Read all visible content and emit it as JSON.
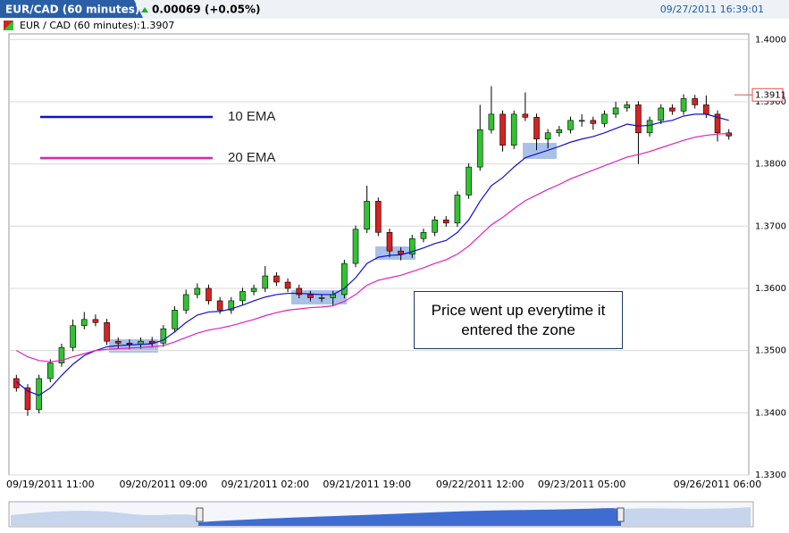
{
  "chart_data": {
    "type": "candlestick",
    "title": "EUR/CAD (60 minutes)",
    "change": "0.00069 (+0.05%)",
    "timestamp": "09/27/2011 16:39:01",
    "subtitle": "EUR / CAD (60 minutes):1.3907",
    "annotation": "Price went up everytime it entered the zone",
    "categories": [
      null,
      null,
      null,
      "09/19/2011 11:00",
      null,
      null,
      null,
      null,
      null,
      null,
      null,
      null,
      null,
      "09/20/2011 09:00",
      null,
      null,
      null,
      null,
      null,
      null,
      null,
      null,
      "09/21/2011 02:00",
      null,
      null,
      null,
      null,
      null,
      null,
      null,
      null,
      "09/21/2011 19:00",
      null,
      null,
      null,
      null,
      null,
      null,
      null,
      null,
      null,
      "09/22/2011 12:00",
      null,
      null,
      null,
      null,
      null,
      null,
      null,
      null,
      "09/23/2011 05:00",
      null,
      null,
      null,
      null,
      null,
      null,
      null,
      null,
      null,
      null,
      null,
      "09/26/2011 06:00",
      null
    ],
    "open": [
      1.3455,
      1.344,
      1.3405,
      1.3455,
      1.348,
      1.3505,
      1.354,
      1.355,
      1.3545,
      1.3515,
      1.3512,
      1.351,
      1.3515,
      1.3512,
      1.3535,
      1.3565,
      1.359,
      1.36,
      1.358,
      1.3565,
      1.358,
      1.3595,
      1.36,
      1.362,
      1.361,
      1.36,
      1.359,
      1.3585,
      1.3585,
      1.359,
      1.364,
      1.3695,
      1.374,
      1.369,
      1.366,
      1.3655,
      1.368,
      1.369,
      1.371,
      1.3705,
      1.375,
      1.3795,
      1.3855,
      1.388,
      1.383,
      1.388,
      1.3875,
      1.384,
      1.385,
      1.3855,
      1.387,
      1.387,
      1.3865,
      1.388,
      1.389,
      1.3895,
      1.385,
      1.387,
      1.389,
      1.3885,
      1.3905,
      1.3895,
      1.388,
      1.385
    ],
    "high": [
      1.3461,
      1.3446,
      1.3461,
      1.3486,
      1.3511,
      1.355,
      1.3562,
      1.3558,
      1.3551,
      1.3521,
      1.3518,
      1.3521,
      1.3522,
      1.3541,
      1.3571,
      1.3598,
      1.3608,
      1.3606,
      1.3586,
      1.3586,
      1.3601,
      1.3606,
      1.3636,
      1.3626,
      1.3616,
      1.3606,
      1.3596,
      1.3591,
      1.3596,
      1.3646,
      1.3701,
      1.3765,
      1.3746,
      1.3696,
      1.3666,
      1.3686,
      1.3696,
      1.3716,
      1.3716,
      1.3756,
      1.3801,
      1.3895,
      1.3925,
      1.3886,
      1.3886,
      1.3915,
      1.3881,
      1.3856,
      1.3861,
      1.3876,
      1.388,
      1.3876,
      1.3886,
      1.39,
      1.3901,
      1.3901,
      1.3876,
      1.3896,
      1.3896,
      1.3912,
      1.3911,
      1.391,
      1.3886,
      1.3856
    ],
    "low": [
      1.3434,
      1.3395,
      1.3399,
      1.3449,
      1.3474,
      1.3499,
      1.3534,
      1.3539,
      1.3509,
      1.3504,
      1.3502,
      1.3503,
      1.3505,
      1.3506,
      1.3529,
      1.3559,
      1.3584,
      1.3574,
      1.3559,
      1.3559,
      1.3574,
      1.3589,
      1.3594,
      1.3604,
      1.3594,
      1.3584,
      1.3579,
      1.3578,
      1.3572,
      1.3584,
      1.3634,
      1.3689,
      1.3684,
      1.365,
      1.3645,
      1.3649,
      1.3674,
      1.3684,
      1.3699,
      1.3699,
      1.3744,
      1.3789,
      1.3849,
      1.382,
      1.3824,
      1.3869,
      1.3822,
      1.3825,
      1.3844,
      1.3849,
      1.386,
      1.3855,
      1.3859,
      1.3874,
      1.3884,
      1.38,
      1.3844,
      1.3864,
      1.3879,
      1.3879,
      1.3889,
      1.3874,
      1.3836,
      1.3839
    ],
    "close": [
      1.344,
      1.3405,
      1.3455,
      1.348,
      1.3505,
      1.354,
      1.355,
      1.3545,
      1.3515,
      1.3512,
      1.351,
      1.3515,
      1.3512,
      1.3535,
      1.3565,
      1.359,
      1.36,
      1.358,
      1.3565,
      1.358,
      1.3595,
      1.36,
      1.362,
      1.361,
      1.36,
      1.359,
      1.3585,
      1.3585,
      1.359,
      1.364,
      1.3695,
      1.374,
      1.369,
      1.366,
      1.3655,
      1.368,
      1.369,
      1.371,
      1.3705,
      1.375,
      1.3795,
      1.3855,
      1.388,
      1.383,
      1.388,
      1.3875,
      1.384,
      1.385,
      1.3855,
      1.387,
      1.387,
      1.3865,
      1.388,
      1.389,
      1.3895,
      1.385,
      1.387,
      1.389,
      1.3885,
      1.3905,
      1.3895,
      1.388,
      1.385,
      1.3845
    ],
    "up_color": "#2fc42f",
    "down_color": "#d52222",
    "series": [
      {
        "name": "10 EMA",
        "color": "#1010d0",
        "values": [
          1.345,
          1.3435,
          1.3428,
          1.344,
          1.346,
          1.3478,
          1.3492,
          1.35,
          1.3506,
          1.3508,
          1.3509,
          1.351,
          1.3511,
          1.3517,
          1.353,
          1.3545,
          1.3557,
          1.3562,
          1.3563,
          1.3567,
          1.3573,
          1.358,
          1.3586,
          1.359,
          1.3592,
          1.3592,
          1.3591,
          1.359,
          1.359,
          1.36,
          1.3617,
          1.364,
          1.365,
          1.3653,
          1.3654,
          1.3659,
          1.3665,
          1.3672,
          1.3677,
          1.369,
          1.371,
          1.374,
          1.3765,
          1.3778,
          1.3795,
          1.381,
          1.3816,
          1.3822,
          1.3828,
          1.3835,
          1.384,
          1.3844,
          1.385,
          1.3857,
          1.3864,
          1.3861,
          1.3862,
          1.3867,
          1.387,
          1.3877,
          1.388,
          1.388,
          1.3875,
          1.387
        ]
      },
      {
        "name": "20 EMA",
        "color": "#e020c0",
        "values": [
          1.35,
          1.349,
          1.3484,
          1.3482,
          1.3484,
          1.349,
          1.3495,
          1.35,
          1.3502,
          1.3503,
          1.3504,
          1.3505,
          1.3506,
          1.3508,
          1.3514,
          1.3521,
          1.3528,
          1.3533,
          1.3536,
          1.354,
          1.3545,
          1.355,
          1.3556,
          1.3561,
          1.3565,
          1.3567,
          1.3569,
          1.357,
          1.3572,
          1.3579,
          1.359,
          1.3605,
          1.3613,
          1.3617,
          1.3621,
          1.3627,
          1.3633,
          1.364,
          1.3646,
          1.3655,
          1.3668,
          1.3685,
          1.3702,
          1.3714,
          1.3728,
          1.3741,
          1.375,
          1.3759,
          1.3767,
          1.3776,
          1.3783,
          1.379,
          1.3797,
          1.3804,
          1.3811,
          1.3815,
          1.382,
          1.3826,
          1.3832,
          1.3838,
          1.3843,
          1.3846,
          1.3848,
          1.3849
        ]
      }
    ],
    "last_price": 1.3911,
    "ylim": [
      1.33,
      1.4009
    ],
    "yticks": [
      {
        "value": 1.33,
        "label": "1.3300"
      },
      {
        "value": 1.34,
        "label": "1.3400"
      },
      {
        "value": 1.35,
        "label": "1.3500"
      },
      {
        "value": 1.36,
        "label": "1.3600"
      },
      {
        "value": 1.37,
        "label": "1.3700"
      },
      {
        "value": 1.38,
        "label": "1.3800"
      },
      {
        "value": 1.39,
        "label": "1.3900"
      },
      {
        "value": 1.4,
        "label": "1.4000"
      }
    ],
    "grid": true
  }
}
